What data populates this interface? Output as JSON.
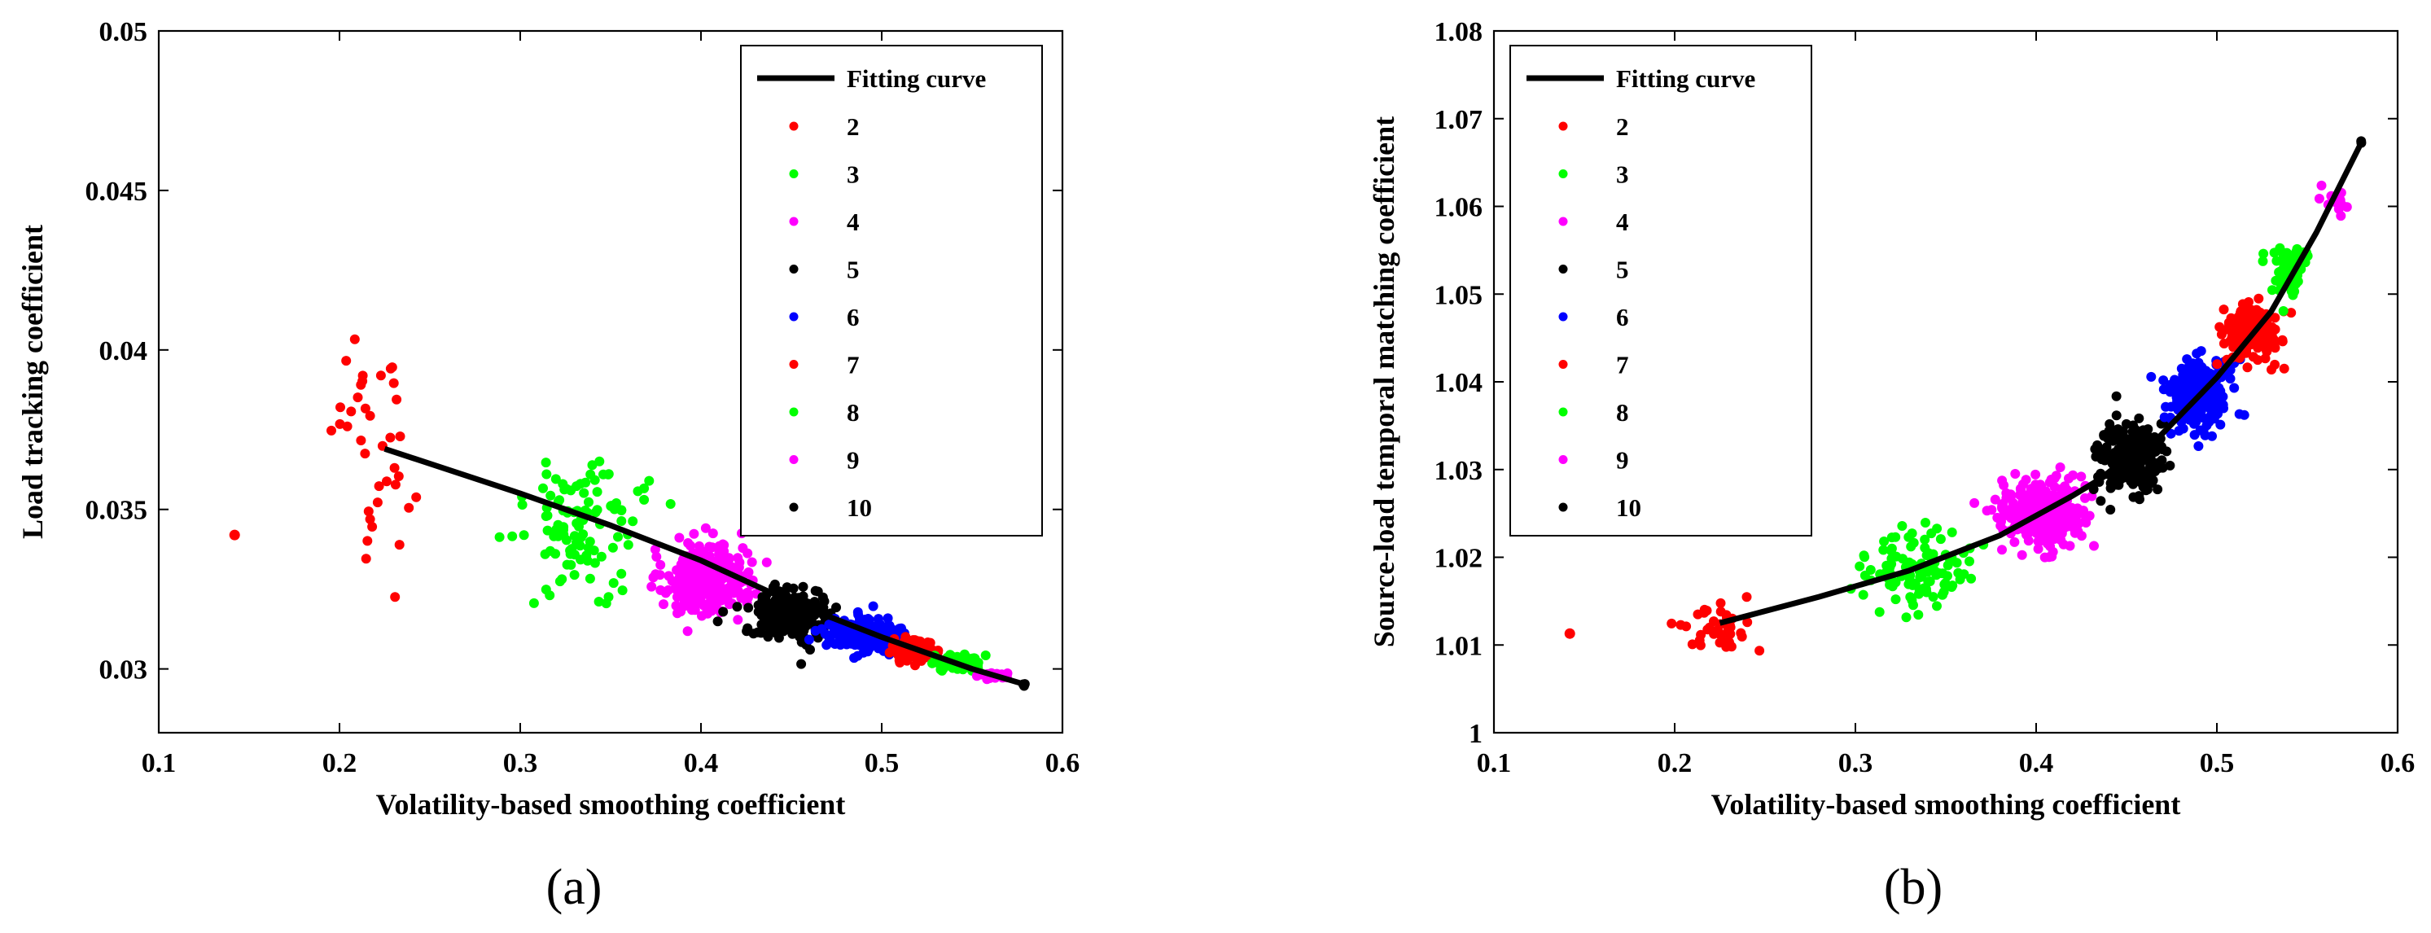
{
  "chart_data": [
    {
      "type": "scatter",
      "panel_label": "(a)",
      "xlabel": "Volatility-based smoothing coefficient",
      "ylabel": "Load tracking coefficient",
      "xlim": [
        0.1,
        0.6
      ],
      "ylim": [
        0.028,
        0.05
      ],
      "xticks": [
        0.1,
        0.2,
        0.3,
        0.4,
        0.5,
        0.6
      ],
      "xtick_labels": [
        "0.1",
        "0.2",
        "0.3",
        "0.4",
        "0.5",
        "0.6"
      ],
      "yticks": [
        0.03,
        0.035,
        0.04,
        0.045,
        0.05
      ],
      "ytick_labels": [
        "0.03",
        "0.035",
        "0.04",
        "0.045",
        "0.05"
      ],
      "legend_position": "top-right",
      "fit_label": "Fitting curve",
      "fit": {
        "x": [
          0.225,
          0.3,
          0.35,
          0.4,
          0.45,
          0.5,
          0.55,
          0.58
        ],
        "y": [
          0.0369,
          0.0355,
          0.0345,
          0.0334,
          0.0321,
          0.031,
          0.03,
          0.0295
        ]
      },
      "series": [
        {
          "name": "2",
          "color": "#ff0000",
          "cx": 0.22,
          "cy": 0.0372,
          "sx": 0.012,
          "sy": 0.0022,
          "n": 38,
          "outlier": [
            0.142,
            0.0342
          ]
        },
        {
          "name": "3",
          "color": "#00ff00",
          "cx": 0.333,
          "cy": 0.0345,
          "sx": 0.018,
          "sy": 0.0012,
          "n": 110
        },
        {
          "name": "4",
          "color": "#ff00ff",
          "cx": 0.403,
          "cy": 0.0328,
          "sx": 0.013,
          "sy": 0.0006,
          "n": 320
        },
        {
          "name": "5",
          "color": "#000000",
          "cx": 0.449,
          "cy": 0.0317,
          "sx": 0.011,
          "sy": 0.0004,
          "n": 300
        },
        {
          "name": "6",
          "color": "#0000ff",
          "cx": 0.49,
          "cy": 0.0311,
          "sx": 0.01,
          "sy": 0.00025,
          "n": 250
        },
        {
          "name": "7",
          "color": "#ff0000",
          "cx": 0.518,
          "cy": 0.0306,
          "sx": 0.007,
          "sy": 0.00018,
          "n": 180
        },
        {
          "name": "8",
          "color": "#00ff00",
          "cx": 0.542,
          "cy": 0.0302,
          "sx": 0.006,
          "sy": 0.00012,
          "n": 100
        },
        {
          "name": "9",
          "color": "#ff00ff",
          "cx": 0.562,
          "cy": 0.0298,
          "sx": 0.004,
          "sy": 6e-05,
          "n": 25
        },
        {
          "name": "10",
          "color": "#000000",
          "cx": 0.579,
          "cy": 0.0295,
          "sx": 0.001,
          "sy": 2e-05,
          "n": 3
        }
      ]
    },
    {
      "type": "scatter",
      "panel_label": "(b)",
      "xlabel": "Volatility-based smoothing coefficient",
      "ylabel": "Source-load temporal matching coefficient",
      "xlim": [
        0.1,
        0.6
      ],
      "ylim": [
        1.0,
        1.08
      ],
      "xticks": [
        0.1,
        0.2,
        0.3,
        0.4,
        0.5,
        0.6
      ],
      "xtick_labels": [
        "0.1",
        "0.2",
        "0.3",
        "0.4",
        "0.5",
        "0.6"
      ],
      "yticks": [
        1.0,
        1.01,
        1.02,
        1.03,
        1.04,
        1.05,
        1.06,
        1.07,
        1.08
      ],
      "ytick_labels": [
        "1",
        "1.01",
        "1.02",
        "1.03",
        "1.04",
        "1.05",
        "1.06",
        "1.07",
        "1.08"
      ],
      "legend_position": "top-left",
      "fit_label": "Fitting curve",
      "fit": {
        "x": [
          0.225,
          0.28,
          0.33,
          0.38,
          0.42,
          0.46,
          0.5,
          0.53,
          0.555,
          0.58
        ],
        "y": [
          1.0125,
          1.0155,
          1.0185,
          1.0225,
          1.027,
          1.032,
          1.0405,
          1.048,
          1.057,
          1.0673
        ]
      },
      "series": [
        {
          "name": "2",
          "color": "#ff0000",
          "cx": 0.222,
          "cy": 1.0118,
          "sx": 0.012,
          "sy": 0.0017,
          "n": 40,
          "outlier": [
            0.142,
            1.0113
          ]
        },
        {
          "name": "3",
          "color": "#00ff00",
          "cx": 0.333,
          "cy": 1.0185,
          "sx": 0.016,
          "sy": 0.0022,
          "n": 110
        },
        {
          "name": "4",
          "color": "#ff00ff",
          "cx": 0.403,
          "cy": 1.025,
          "sx": 0.013,
          "sy": 0.0022,
          "n": 300
        },
        {
          "name": "5",
          "color": "#000000",
          "cx": 0.452,
          "cy": 1.0315,
          "sx": 0.01,
          "sy": 0.0023,
          "n": 280
        },
        {
          "name": "6",
          "color": "#0000ff",
          "cx": 0.49,
          "cy": 1.039,
          "sx": 0.01,
          "sy": 0.0022,
          "n": 230
        },
        {
          "name": "7",
          "color": "#ff0000",
          "cx": 0.52,
          "cy": 1.0458,
          "sx": 0.008,
          "sy": 0.0018,
          "n": 150
        },
        {
          "name": "8",
          "color": "#00ff00",
          "cx": 0.54,
          "cy": 1.0525,
          "sx": 0.006,
          "sy": 0.0016,
          "n": 70
        },
        {
          "name": "9",
          "color": "#ff00ff",
          "cx": 0.565,
          "cy": 1.0605,
          "sx": 0.005,
          "sy": 0.0008,
          "n": 15
        },
        {
          "name": "10",
          "color": "#000000",
          "cx": 0.58,
          "cy": 1.0673,
          "sx": 0.001,
          "sy": 0.0001,
          "n": 2
        }
      ]
    }
  ]
}
